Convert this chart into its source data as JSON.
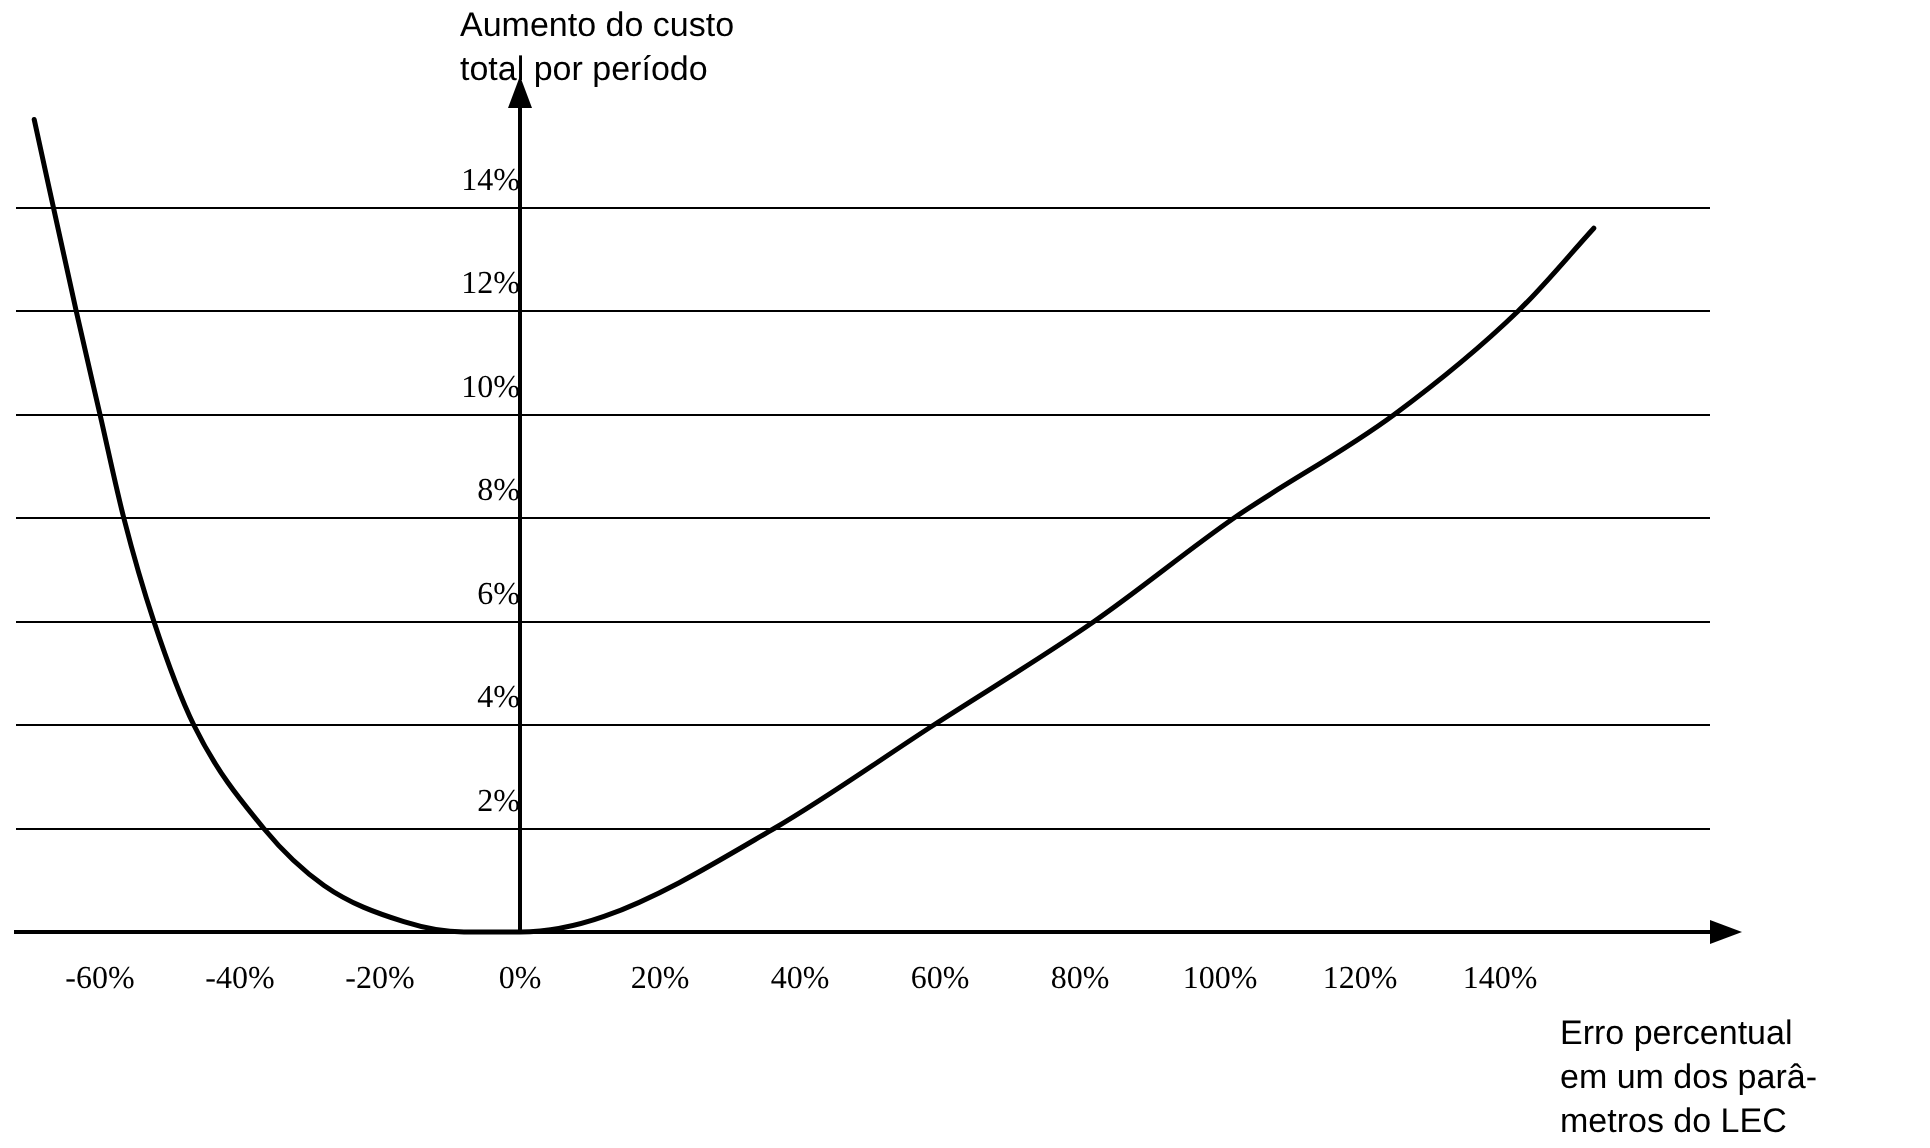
{
  "chart_data": {
    "type": "line",
    "xlabel": "Erro percentual\nem um dos parâ-\nmetros do LEC",
    "ylabel": "Aumento do custo\ntotal por período",
    "xlim": [
      -72,
      170
    ],
    "ylim": [
      0,
      16
    ],
    "xticks": [
      {
        "value": -60,
        "label": "-60%"
      },
      {
        "value": -40,
        "label": "-40%"
      },
      {
        "value": -20,
        "label": "-20%"
      },
      {
        "value": 0,
        "label": "0%"
      },
      {
        "value": 20,
        "label": "20%"
      },
      {
        "value": 40,
        "label": "40%"
      },
      {
        "value": 60,
        "label": "60%"
      },
      {
        "value": 80,
        "label": "80%"
      },
      {
        "value": 100,
        "label": "100%"
      },
      {
        "value": 120,
        "label": "120%"
      },
      {
        "value": 140,
        "label": "140%"
      }
    ],
    "yticks": [
      {
        "value": 0,
        "label": null
      },
      {
        "value": 2,
        "label": "2%"
      },
      {
        "value": 4,
        "label": "4%"
      },
      {
        "value": 6,
        "label": "6%"
      },
      {
        "value": 8,
        "label": "8%"
      },
      {
        "value": 10,
        "label": "10%"
      },
      {
        "value": 12,
        "label": "12%"
      },
      {
        "value": 14,
        "label": "14%"
      }
    ],
    "grid": "y",
    "legend": false,
    "marker": "none",
    "line_style": "solid",
    "series": [
      {
        "color": "#000000",
        "x": [
          -69.4,
          -63.4,
          -60,
          -56.6,
          -52.3,
          -46.6,
          -36.6,
          -28,
          -16.6,
          -8,
          0,
          12,
          36.3,
          59.1,
          82,
          102,
          124.9,
          142.6,
          153.4
        ],
        "values": [
          15.7,
          12,
          10,
          8,
          6,
          4,
          2,
          0.9,
          0.2,
          0,
          0,
          0.3,
          2,
          4,
          6,
          8,
          10,
          12,
          13.6
        ]
      }
    ]
  }
}
